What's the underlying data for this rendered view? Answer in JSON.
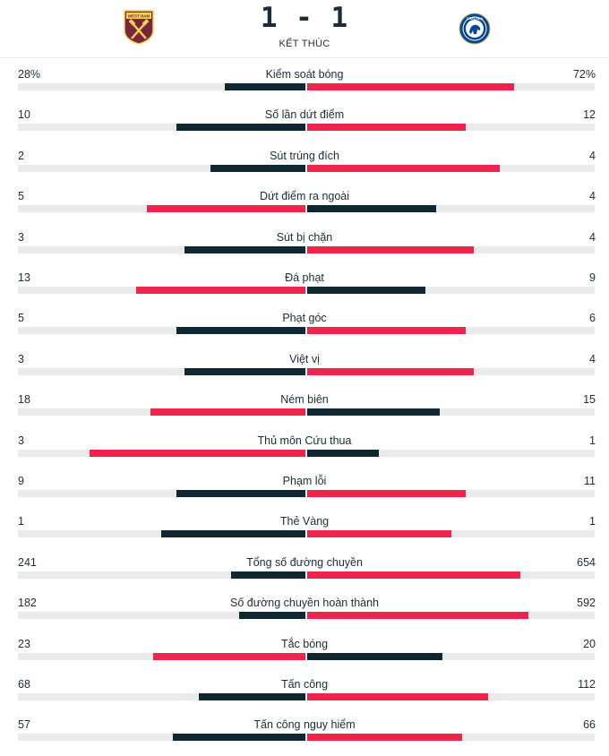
{
  "match": {
    "score": "1 - 1",
    "status": "KẾT THÚC",
    "home_crest_text": "WEST HAM",
    "away_crest_text": "CHELSEA"
  },
  "colors": {
    "leader": "#f0234d",
    "trailer": "#0f2730",
    "track": "#eaeaea"
  },
  "stats": [
    {
      "label": "Kiểm soát bóng",
      "home": "28%",
      "away": "72%",
      "home_value": 28,
      "away_value": 72,
      "home_fill": 0.28,
      "away_fill": 0.72
    },
    {
      "label": "Số lần dứt điểm",
      "home": "10",
      "away": "12",
      "home_value": 10,
      "away_value": 12,
      "home_fill": 0.45,
      "away_fill": 0.55
    },
    {
      "label": "Sút trúng đích",
      "home": "2",
      "away": "4",
      "home_value": 2,
      "away_value": 4,
      "home_fill": 0.33,
      "away_fill": 0.67
    },
    {
      "label": "Dứt điểm ra ngoài",
      "home": "5",
      "away": "4",
      "home_value": 5,
      "away_value": 4,
      "home_fill": 0.55,
      "away_fill": 0.45
    },
    {
      "label": "Sút bị chặn",
      "home": "3",
      "away": "4",
      "home_value": 3,
      "away_value": 4,
      "home_fill": 0.42,
      "away_fill": 0.58
    },
    {
      "label": "Đá phạt",
      "home": "13",
      "away": "9",
      "home_value": 13,
      "away_value": 9,
      "home_fill": 0.59,
      "away_fill": 0.41
    },
    {
      "label": "Phạt góc",
      "home": "5",
      "away": "6",
      "home_value": 5,
      "away_value": 6,
      "home_fill": 0.45,
      "away_fill": 0.55
    },
    {
      "label": "Việt vị",
      "home": "3",
      "away": "4",
      "home_value": 3,
      "away_value": 4,
      "home_fill": 0.42,
      "away_fill": 0.58
    },
    {
      "label": "Ném biên",
      "home": "18",
      "away": "15",
      "home_value": 18,
      "away_value": 15,
      "home_fill": 0.54,
      "away_fill": 0.46
    },
    {
      "label": "Thủ môn Cứu thua",
      "home": "3",
      "away": "1",
      "home_value": 3,
      "away_value": 1,
      "home_fill": 0.75,
      "away_fill": 0.25
    },
    {
      "label": "Phạm lỗi",
      "home": "9",
      "away": "11",
      "home_value": 9,
      "away_value": 11,
      "home_fill": 0.45,
      "away_fill": 0.55
    },
    {
      "label": "Thẻ Vàng",
      "home": "1",
      "away": "1",
      "home_value": 1,
      "away_value": 1,
      "home_fill": 0.5,
      "away_fill": 0.5
    },
    {
      "label": "Tổng số đường chuyền",
      "home": "241",
      "away": "654",
      "home_value": 241,
      "away_value": 654,
      "home_fill": 0.26,
      "away_fill": 0.74
    },
    {
      "label": "Số đường chuyền hoàn thành",
      "home": "182",
      "away": "592",
      "home_value": 182,
      "away_value": 592,
      "home_fill": 0.23,
      "away_fill": 0.77
    },
    {
      "label": "Tắc bóng",
      "home": "23",
      "away": "20",
      "home_value": 23,
      "away_value": 20,
      "home_fill": 0.53,
      "away_fill": 0.47
    },
    {
      "label": "Tấn công",
      "home": "68",
      "away": "112",
      "home_value": 68,
      "away_value": 112,
      "home_fill": 0.37,
      "away_fill": 0.63
    },
    {
      "label": "Tấn công nguy hiểm",
      "home": "57",
      "away": "66",
      "home_value": 57,
      "away_value": 66,
      "home_fill": 0.46,
      "away_fill": 0.54
    }
  ]
}
